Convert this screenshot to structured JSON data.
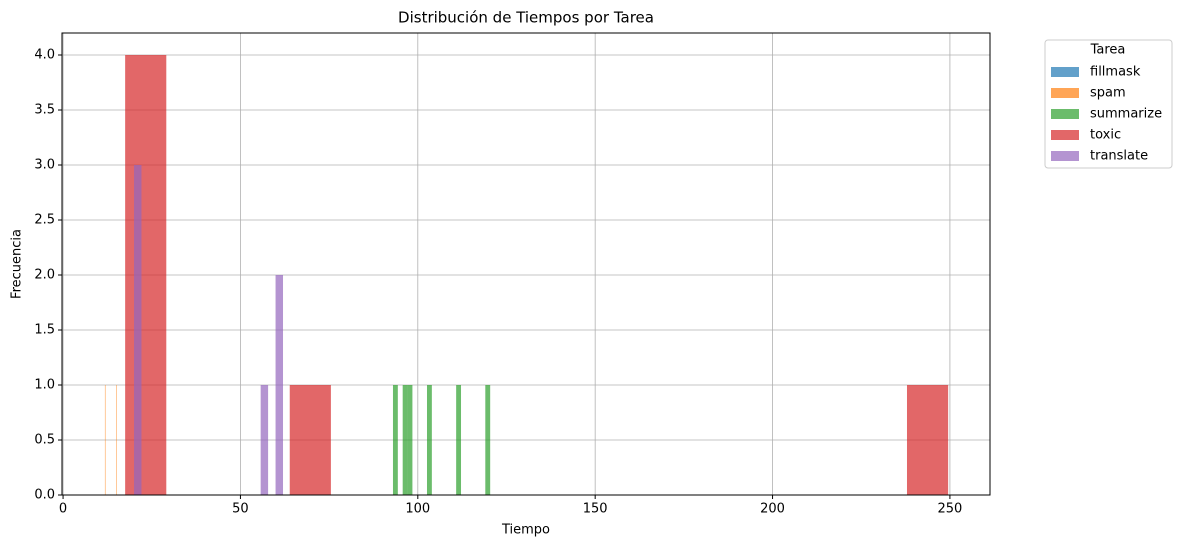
{
  "chart_data": {
    "type": "histogram",
    "title": "Distribución de Tiempos por Tarea",
    "xlabel": "Tiempo",
    "ylabel": "Frecuencia",
    "legend_title": "Tarea",
    "legend": "upper right outside",
    "grid": true,
    "opacity": 0.7,
    "xlim": [
      -0.3,
      261.3
    ],
    "xticks": [
      0,
      50,
      100,
      150,
      200,
      250
    ],
    "ylim": [
      0,
      4.2
    ],
    "yticks": [
      {
        "value": 0,
        "label": "0.0"
      },
      {
        "value": 0.5,
        "label": "0.5"
      },
      {
        "value": 1,
        "label": "1.0"
      },
      {
        "value": 1.5,
        "label": "1.5"
      },
      {
        "value": 2,
        "label": "2.0"
      },
      {
        "value": 2.5,
        "label": "2.5"
      },
      {
        "value": 3,
        "label": "3.0"
      },
      {
        "value": 3.5,
        "label": "3.5"
      },
      {
        "value": 4,
        "label": "4.0"
      }
    ],
    "series": [
      {
        "name": "fillmask",
        "color": "#1f77b4",
        "bins": [],
        "values": []
      },
      {
        "name": "spam",
        "color": "#ff7f0e",
        "bins": [
          11.8,
          11.965,
          12.13,
          12.295,
          12.46,
          12.625,
          12.79,
          12.955,
          13.12,
          13.285,
          13.45,
          13.615,
          13.78,
          13.945,
          14.11,
          14.275,
          14.44,
          14.605,
          14.77,
          14.935,
          15.1
        ],
        "values": [
          1,
          0,
          0,
          0,
          0,
          0,
          0,
          0,
          0,
          0,
          0,
          0,
          0,
          0,
          0,
          0,
          0,
          0,
          0,
          1
        ]
      },
      {
        "name": "summarize",
        "color": "#2ca02c",
        "bins": [
          93,
          94.37,
          95.74,
          97.11,
          98.48,
          99.85,
          101.22,
          102.59,
          103.96,
          105.33,
          106.7,
          108.07,
          109.44,
          110.81,
          112.18,
          113.55,
          114.92,
          116.29,
          117.66,
          119.03,
          120.4
        ],
        "values": [
          1,
          0,
          1,
          1,
          0,
          0,
          0,
          1,
          0,
          0,
          0,
          0,
          0,
          1,
          0,
          0,
          0,
          0,
          0,
          1
        ]
      },
      {
        "name": "toxic",
        "color": "#d62728",
        "bins": [
          17.5,
          29.1,
          40.7,
          52.3,
          63.9,
          75.5,
          87.1,
          98.7,
          110.3,
          121.9,
          133.5,
          145.1,
          156.7,
          168.3,
          179.9,
          191.5,
          203.1,
          214.7,
          226.3,
          237.9,
          249.5
        ],
        "values": [
          4,
          0,
          0,
          0,
          1,
          0,
          0,
          0,
          0,
          0,
          0,
          0,
          0,
          0,
          0,
          0,
          0,
          0,
          0,
          1
        ]
      },
      {
        "name": "translate",
        "color": "#9467bd",
        "bins": [
          20,
          22.1,
          24.2,
          26.3,
          28.4,
          30.5,
          32.6,
          34.7,
          36.8,
          38.9,
          41,
          43.1,
          45.2,
          47.3,
          49.4,
          51.5,
          53.6,
          55.7,
          57.8,
          59.9,
          62
        ],
        "values": [
          3,
          0,
          0,
          0,
          0,
          0,
          0,
          0,
          0,
          0,
          0,
          0,
          0,
          0,
          0,
          0,
          0,
          1,
          0,
          2
        ]
      }
    ]
  }
}
